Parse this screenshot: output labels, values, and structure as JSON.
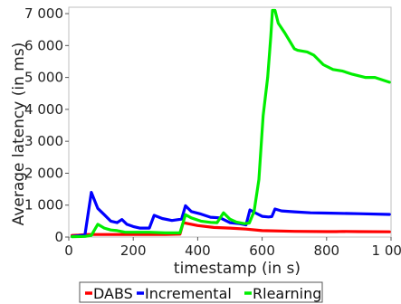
{
  "chart_data": {
    "type": "line",
    "title": "",
    "xlabel": "timestamp (in s)",
    "ylabel": "Average latency (in ms)",
    "xlim": [
      0,
      1000
    ],
    "ylim": [
      0,
      7200
    ],
    "x_ticks": [
      0,
      200,
      400,
      600,
      800,
      1000
    ],
    "x_tick_labels": [
      "0",
      "200",
      "400",
      "600",
      "800",
      "1 000"
    ],
    "y_ticks": [
      0,
      1000,
      2000,
      3000,
      4000,
      5000,
      6000,
      7000
    ],
    "y_tick_labels": [
      "0",
      "1 000",
      "2 000",
      "3 000",
      "4 000",
      "5 000",
      "6 000",
      "7 000"
    ],
    "grid": false,
    "legend_position": "bottom",
    "series": [
      {
        "name": "DABS",
        "color": "#ff0000",
        "points": [
          [
            10,
            50
          ],
          [
            30,
            60
          ],
          [
            60,
            80
          ],
          [
            100,
            80
          ],
          [
            200,
            80
          ],
          [
            300,
            80
          ],
          [
            345,
            90
          ],
          [
            355,
            450
          ],
          [
            370,
            420
          ],
          [
            400,
            360
          ],
          [
            450,
            300
          ],
          [
            500,
            280
          ],
          [
            550,
            250
          ],
          [
            600,
            200
          ],
          [
            700,
            180
          ],
          [
            800,
            170
          ],
          [
            830,
            170
          ],
          [
            850,
            175
          ],
          [
            900,
            170
          ],
          [
            995,
            165
          ]
        ]
      },
      {
        "name": "Incremental",
        "color": "#0000ff",
        "points": [
          [
            10,
            20
          ],
          [
            50,
            60
          ],
          [
            70,
            1400
          ],
          [
            90,
            900
          ],
          [
            110,
            700
          ],
          [
            130,
            500
          ],
          [
            150,
            450
          ],
          [
            165,
            550
          ],
          [
            180,
            400
          ],
          [
            200,
            330
          ],
          [
            220,
            280
          ],
          [
            250,
            280
          ],
          [
            265,
            680
          ],
          [
            290,
            580
          ],
          [
            320,
            520
          ],
          [
            350,
            560
          ],
          [
            362,
            980
          ],
          [
            380,
            800
          ],
          [
            410,
            720
          ],
          [
            440,
            620
          ],
          [
            470,
            600
          ],
          [
            500,
            450
          ],
          [
            530,
            420
          ],
          [
            550,
            380
          ],
          [
            562,
            850
          ],
          [
            580,
            750
          ],
          [
            600,
            650
          ],
          [
            620,
            630
          ],
          [
            630,
            640
          ],
          [
            640,
            880
          ],
          [
            660,
            820
          ],
          [
            700,
            790
          ],
          [
            750,
            760
          ],
          [
            800,
            750
          ],
          [
            900,
            730
          ],
          [
            995,
            710
          ]
        ]
      },
      {
        "name": "Rlearning",
        "color": "#00ee00",
        "points": [
          [
            10,
            10
          ],
          [
            50,
            20
          ],
          [
            70,
            50
          ],
          [
            90,
            400
          ],
          [
            110,
            280
          ],
          [
            130,
            220
          ],
          [
            150,
            200
          ],
          [
            175,
            150
          ],
          [
            200,
            150
          ],
          [
            250,
            150
          ],
          [
            300,
            130
          ],
          [
            345,
            130
          ],
          [
            362,
            700
          ],
          [
            380,
            600
          ],
          [
            410,
            500
          ],
          [
            440,
            460
          ],
          [
            460,
            450
          ],
          [
            480,
            760
          ],
          [
            500,
            560
          ],
          [
            520,
            470
          ],
          [
            545,
            420
          ],
          [
            560,
            440
          ],
          [
            575,
            800
          ],
          [
            590,
            1800
          ],
          [
            603,
            3800
          ],
          [
            617,
            5000
          ],
          [
            627,
            6300
          ],
          [
            632,
            7100
          ],
          [
            640,
            7100
          ],
          [
            650,
            6700
          ],
          [
            670,
            6400
          ],
          [
            700,
            5900
          ],
          [
            710,
            5850
          ],
          [
            740,
            5800
          ],
          [
            760,
            5700
          ],
          [
            790,
            5400
          ],
          [
            820,
            5250
          ],
          [
            850,
            5200
          ],
          [
            880,
            5100
          ],
          [
            920,
            5000
          ],
          [
            950,
            5000
          ],
          [
            995,
            4850
          ]
        ]
      }
    ]
  }
}
